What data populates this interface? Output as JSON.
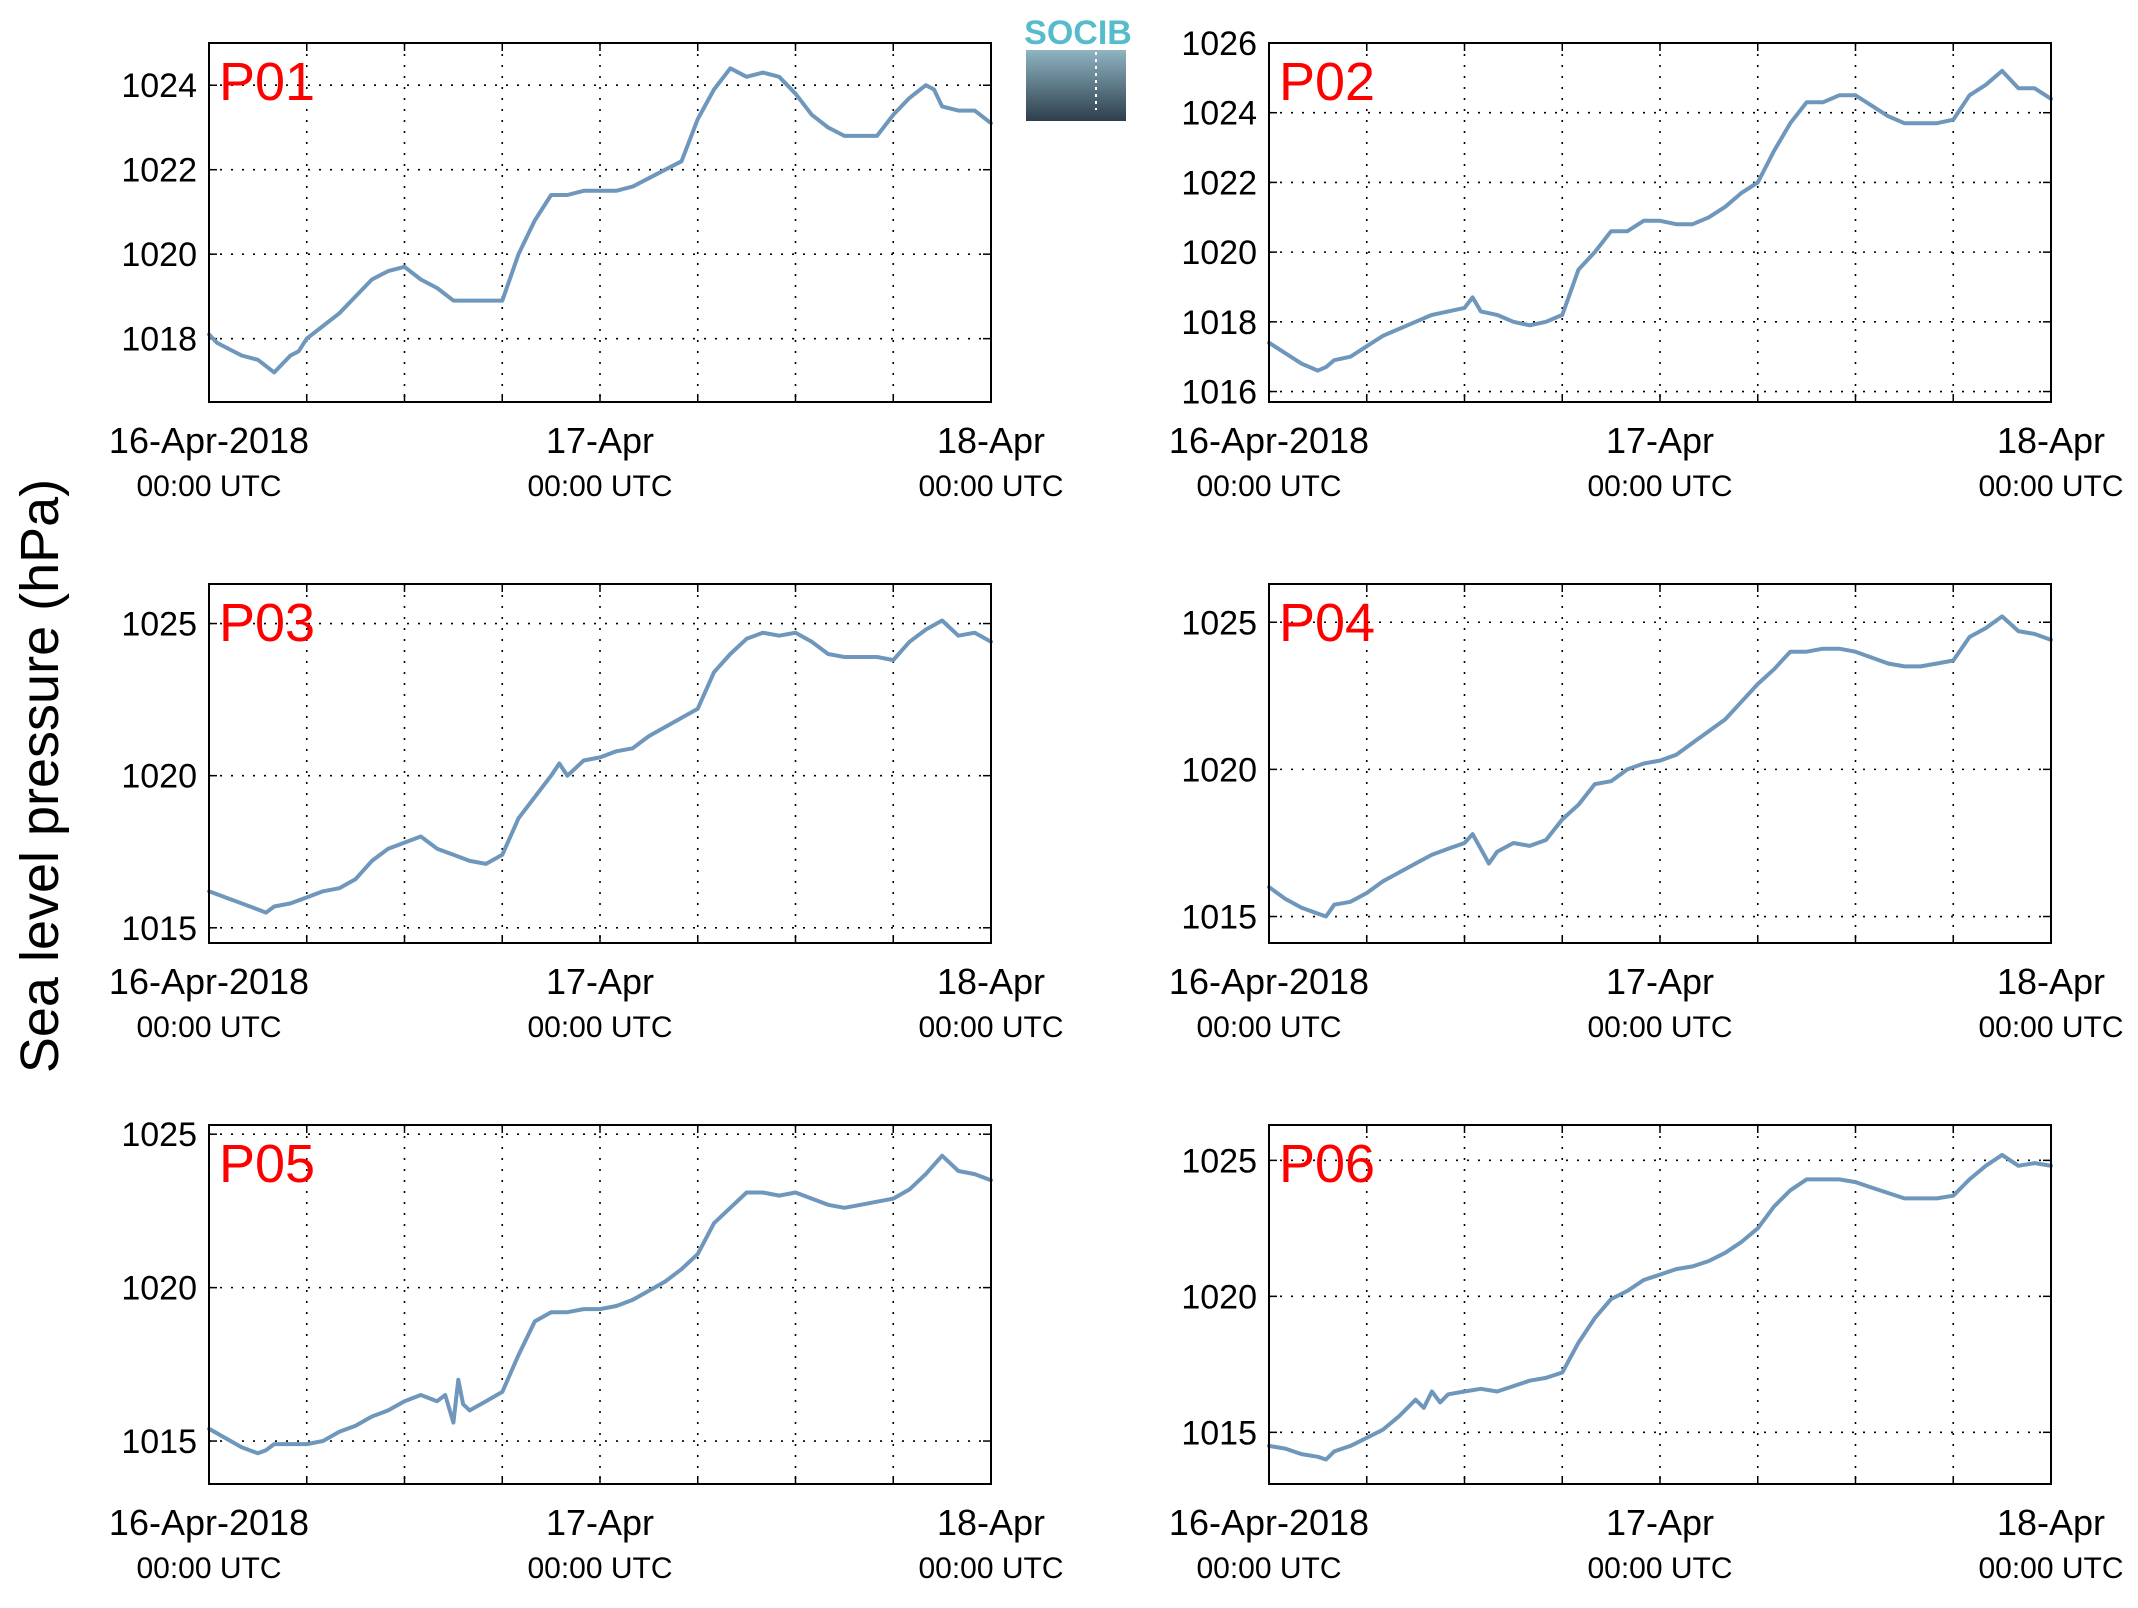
{
  "figure": {
    "ylabel": "Sea level pressure (hPa)",
    "logo_text": "SOCIB",
    "line_color": "#6f97bc",
    "label_color": "#ff0000"
  },
  "chart_data": [
    {
      "type": "line",
      "title": "P01",
      "x_ticks": [
        {
          "value": 0,
          "label": "16-Apr-2018",
          "sublabel": "00:00 UTC"
        },
        {
          "value": 24,
          "label": "17-Apr",
          "sublabel": "00:00 UTC"
        },
        {
          "value": 48,
          "label": "18-Apr",
          "sublabel": "00:00 UTC"
        }
      ],
      "x_grid": [
        6,
        12,
        18,
        24,
        30,
        36,
        42
      ],
      "xlim": [
        0,
        48
      ],
      "ylim": [
        1016.5,
        1025
      ],
      "yticks": [
        1018,
        1020,
        1022,
        1024
      ],
      "grid": true,
      "series": [
        {
          "x": [
            0,
            0.5,
            1,
            2,
            3,
            4,
            5,
            5.5,
            6,
            7,
            8,
            9,
            10,
            11,
            12,
            13,
            14,
            15,
            16,
            17,
            18,
            19,
            20,
            21,
            22,
            23,
            24,
            25,
            26,
            27,
            28,
            29,
            30,
            31,
            32,
            33,
            34,
            35,
            36,
            37,
            38,
            39,
            40,
            41,
            42,
            43,
            44,
            44.5,
            45,
            46,
            47,
            48
          ],
          "y": [
            1018.1,
            1017.9,
            1017.8,
            1017.6,
            1017.5,
            1017.2,
            1017.6,
            1017.7,
            1018.0,
            1018.3,
            1018.6,
            1019.0,
            1019.4,
            1019.6,
            1019.7,
            1019.4,
            1019.2,
            1018.9,
            1018.9,
            1018.9,
            1018.9,
            1020.0,
            1020.8,
            1021.4,
            1021.4,
            1021.5,
            1021.5,
            1021.5,
            1021.6,
            1021.8,
            1022.0,
            1022.2,
            1023.2,
            1023.9,
            1024.4,
            1024.2,
            1024.3,
            1024.2,
            1023.8,
            1023.3,
            1023.0,
            1022.8,
            1022.8,
            1022.8,
            1023.3,
            1023.7,
            1024.0,
            1023.9,
            1023.5,
            1023.4,
            1023.4,
            1023.1
          ]
        }
      ]
    },
    {
      "type": "line",
      "title": "P02",
      "x_ticks": [
        {
          "value": 0,
          "label": "16-Apr-2018",
          "sublabel": "00:00 UTC"
        },
        {
          "value": 24,
          "label": "17-Apr",
          "sublabel": "00:00 UTC"
        },
        {
          "value": 48,
          "label": "18-Apr",
          "sublabel": "00:00 UTC"
        }
      ],
      "x_grid": [
        6,
        12,
        18,
        24,
        30,
        36,
        42
      ],
      "xlim": [
        0,
        48
      ],
      "ylim": [
        1015.7,
        1026
      ],
      "yticks": [
        1016,
        1018,
        1020,
        1022,
        1024,
        1026
      ],
      "grid": true,
      "series": [
        {
          "x": [
            0,
            1,
            2,
            3,
            3.5,
            4,
            5,
            6,
            7,
            8,
            9,
            10,
            11,
            12,
            12.5,
            13,
            14,
            15,
            16,
            17,
            18,
            19,
            20,
            21,
            22,
            23,
            24,
            25,
            26,
            27,
            28,
            29,
            30,
            31,
            32,
            33,
            34,
            35,
            36,
            37,
            38,
            39,
            40,
            41,
            42,
            43,
            44,
            45,
            46,
            47,
            48
          ],
          "y": [
            1017.4,
            1017.1,
            1016.8,
            1016.6,
            1016.7,
            1016.9,
            1017.0,
            1017.3,
            1017.6,
            1017.8,
            1018.0,
            1018.2,
            1018.3,
            1018.4,
            1018.7,
            1018.3,
            1018.2,
            1018.0,
            1017.9,
            1018.0,
            1018.2,
            1019.5,
            1020.0,
            1020.6,
            1020.6,
            1020.9,
            1020.9,
            1020.8,
            1020.8,
            1021.0,
            1021.3,
            1021.7,
            1022.0,
            1022.9,
            1023.7,
            1024.3,
            1024.3,
            1024.5,
            1024.5,
            1024.2,
            1023.9,
            1023.7,
            1023.7,
            1023.7,
            1023.8,
            1024.5,
            1024.8,
            1025.2,
            1024.7,
            1024.7,
            1024.4
          ]
        }
      ]
    },
    {
      "type": "line",
      "title": "P03",
      "x_ticks": [
        {
          "value": 0,
          "label": "16-Apr-2018",
          "sublabel": "00:00 UTC"
        },
        {
          "value": 24,
          "label": "17-Apr",
          "sublabel": "00:00 UTC"
        },
        {
          "value": 48,
          "label": "18-Apr",
          "sublabel": "00:00 UTC"
        }
      ],
      "x_grid": [
        6,
        12,
        18,
        24,
        30,
        36,
        42
      ],
      "xlim": [
        0,
        48
      ],
      "ylim": [
        1014.5,
        1026.3
      ],
      "yticks": [
        1015,
        1020,
        1025
      ],
      "grid": true,
      "series": [
        {
          "x": [
            0,
            1,
            2,
            3,
            3.5,
            4,
            5,
            6,
            7,
            8,
            9,
            10,
            11,
            12,
            13,
            14,
            15,
            16,
            17,
            18,
            19,
            20,
            21,
            21.5,
            22,
            23,
            24,
            25,
            26,
            27,
            28,
            29,
            30,
            31,
            32,
            33,
            34,
            35,
            36,
            37,
            38,
            39,
            40,
            41,
            42,
            43,
            44,
            45,
            46,
            47,
            48
          ],
          "y": [
            1016.2,
            1016.0,
            1015.8,
            1015.6,
            1015.5,
            1015.7,
            1015.8,
            1016.0,
            1016.2,
            1016.3,
            1016.6,
            1017.2,
            1017.6,
            1017.8,
            1018.0,
            1017.6,
            1017.4,
            1017.2,
            1017.1,
            1017.4,
            1018.6,
            1019.3,
            1020.0,
            1020.4,
            1020.0,
            1020.5,
            1020.6,
            1020.8,
            1020.9,
            1021.3,
            1021.6,
            1021.9,
            1022.2,
            1023.4,
            1024.0,
            1024.5,
            1024.7,
            1024.6,
            1024.7,
            1024.4,
            1024.0,
            1023.9,
            1023.9,
            1023.9,
            1023.8,
            1024.4,
            1024.8,
            1025.1,
            1024.6,
            1024.7,
            1024.4
          ]
        }
      ]
    },
    {
      "type": "line",
      "title": "P04",
      "x_ticks": [
        {
          "value": 0,
          "label": "16-Apr-2018",
          "sublabel": "00:00 UTC"
        },
        {
          "value": 24,
          "label": "17-Apr",
          "sublabel": "00:00 UTC"
        },
        {
          "value": 48,
          "label": "18-Apr",
          "sublabel": "00:00 UTC"
        }
      ],
      "x_grid": [
        6,
        12,
        18,
        24,
        30,
        36,
        42
      ],
      "xlim": [
        0,
        48
      ],
      "ylim": [
        1014.1,
        1026.3
      ],
      "yticks": [
        1015,
        1020,
        1025
      ],
      "grid": true,
      "series": [
        {
          "x": [
            0,
            1,
            2,
            3,
            3.5,
            4,
            5,
            6,
            7,
            8,
            9,
            10,
            11,
            12,
            12.5,
            13,
            13.5,
            14,
            15,
            16,
            17,
            18,
            19,
            20,
            21,
            22,
            23,
            24,
            25,
            26,
            27,
            28,
            29,
            30,
            31,
            32,
            33,
            34,
            35,
            36,
            37,
            38,
            39,
            40,
            41,
            42,
            43,
            44,
            45,
            46,
            47,
            48
          ],
          "y": [
            1016.0,
            1015.6,
            1015.3,
            1015.1,
            1015.0,
            1015.4,
            1015.5,
            1015.8,
            1016.2,
            1016.5,
            1016.8,
            1017.1,
            1017.3,
            1017.5,
            1017.8,
            1017.3,
            1016.8,
            1017.2,
            1017.5,
            1017.4,
            1017.6,
            1018.3,
            1018.8,
            1019.5,
            1019.6,
            1020.0,
            1020.2,
            1020.3,
            1020.5,
            1020.9,
            1021.3,
            1021.7,
            1022.3,
            1022.9,
            1023.4,
            1024.0,
            1024.0,
            1024.1,
            1024.1,
            1024.0,
            1023.8,
            1023.6,
            1023.5,
            1023.5,
            1023.6,
            1023.7,
            1024.5,
            1024.8,
            1025.2,
            1024.7,
            1024.6,
            1024.4
          ]
        }
      ]
    },
    {
      "type": "line",
      "title": "P05",
      "x_ticks": [
        {
          "value": 0,
          "label": "16-Apr-2018",
          "sublabel": "00:00 UTC"
        },
        {
          "value": 24,
          "label": "17-Apr",
          "sublabel": "00:00 UTC"
        },
        {
          "value": 48,
          "label": "18-Apr",
          "sublabel": "00:00 UTC"
        }
      ],
      "x_grid": [
        6,
        12,
        18,
        24,
        30,
        36,
        42
      ],
      "xlim": [
        0,
        48
      ],
      "ylim": [
        1013.6,
        1025.3
      ],
      "yticks": [
        1015,
        1020,
        1025
      ],
      "grid": true,
      "series": [
        {
          "x": [
            0,
            1,
            2,
            3,
            3.5,
            4,
            5,
            6,
            7,
            8,
            9,
            10,
            11,
            12,
            13,
            14,
            14.5,
            15,
            15.3,
            15.6,
            16,
            17,
            18,
            19,
            20,
            21,
            22,
            23,
            24,
            25,
            26,
            27,
            28,
            29,
            30,
            31,
            32,
            33,
            34,
            35,
            36,
            37,
            38,
            39,
            40,
            41,
            42,
            43,
            44,
            45,
            46,
            47,
            48
          ],
          "y": [
            1015.4,
            1015.1,
            1014.8,
            1014.6,
            1014.7,
            1014.9,
            1014.9,
            1014.9,
            1015.0,
            1015.3,
            1015.5,
            1015.8,
            1016.0,
            1016.3,
            1016.5,
            1016.3,
            1016.5,
            1015.6,
            1017.0,
            1016.2,
            1016.0,
            1016.3,
            1016.6,
            1017.8,
            1018.9,
            1019.2,
            1019.2,
            1019.3,
            1019.3,
            1019.4,
            1019.6,
            1019.9,
            1020.2,
            1020.6,
            1021.1,
            1022.1,
            1022.6,
            1023.1,
            1023.1,
            1023.0,
            1023.1,
            1022.9,
            1022.7,
            1022.6,
            1022.7,
            1022.8,
            1022.9,
            1023.2,
            1023.7,
            1024.3,
            1023.8,
            1023.7,
            1023.5
          ]
        }
      ]
    },
    {
      "type": "line",
      "title": "P06",
      "x_ticks": [
        {
          "value": 0,
          "label": "16-Apr-2018",
          "sublabel": "00:00 UTC"
        },
        {
          "value": 24,
          "label": "17-Apr",
          "sublabel": "00:00 UTC"
        },
        {
          "value": 48,
          "label": "18-Apr",
          "sublabel": "00:00 UTC"
        }
      ],
      "x_grid": [
        6,
        12,
        18,
        24,
        30,
        36,
        42
      ],
      "xlim": [
        0,
        48
      ],
      "ylim": [
        1013.1,
        1026.3
      ],
      "yticks": [
        1015,
        1020,
        1025
      ],
      "grid": true,
      "series": [
        {
          "x": [
            0,
            1,
            2,
            3,
            3.5,
            4,
            5,
            6,
            7,
            8,
            9,
            9.5,
            10,
            10.5,
            11,
            12,
            13,
            14,
            15,
            16,
            17,
            18,
            19,
            20,
            21,
            22,
            23,
            24,
            25,
            26,
            27,
            28,
            29,
            30,
            31,
            32,
            33,
            34,
            35,
            36,
            37,
            38,
            39,
            40,
            41,
            42,
            43,
            44,
            45,
            46,
            47,
            48
          ],
          "y": [
            1014.5,
            1014.4,
            1014.2,
            1014.1,
            1014.0,
            1014.3,
            1014.5,
            1014.8,
            1015.1,
            1015.6,
            1016.2,
            1015.9,
            1016.5,
            1016.1,
            1016.4,
            1016.5,
            1016.6,
            1016.5,
            1016.7,
            1016.9,
            1017.0,
            1017.2,
            1018.3,
            1019.2,
            1019.9,
            1020.2,
            1020.6,
            1020.8,
            1021.0,
            1021.1,
            1021.3,
            1021.6,
            1022.0,
            1022.5,
            1023.3,
            1023.9,
            1024.3,
            1024.3,
            1024.3,
            1024.2,
            1024.0,
            1023.8,
            1023.6,
            1023.6,
            1023.6,
            1023.7,
            1024.3,
            1024.8,
            1025.2,
            1024.8,
            1024.9,
            1024.8
          ]
        }
      ]
    }
  ]
}
